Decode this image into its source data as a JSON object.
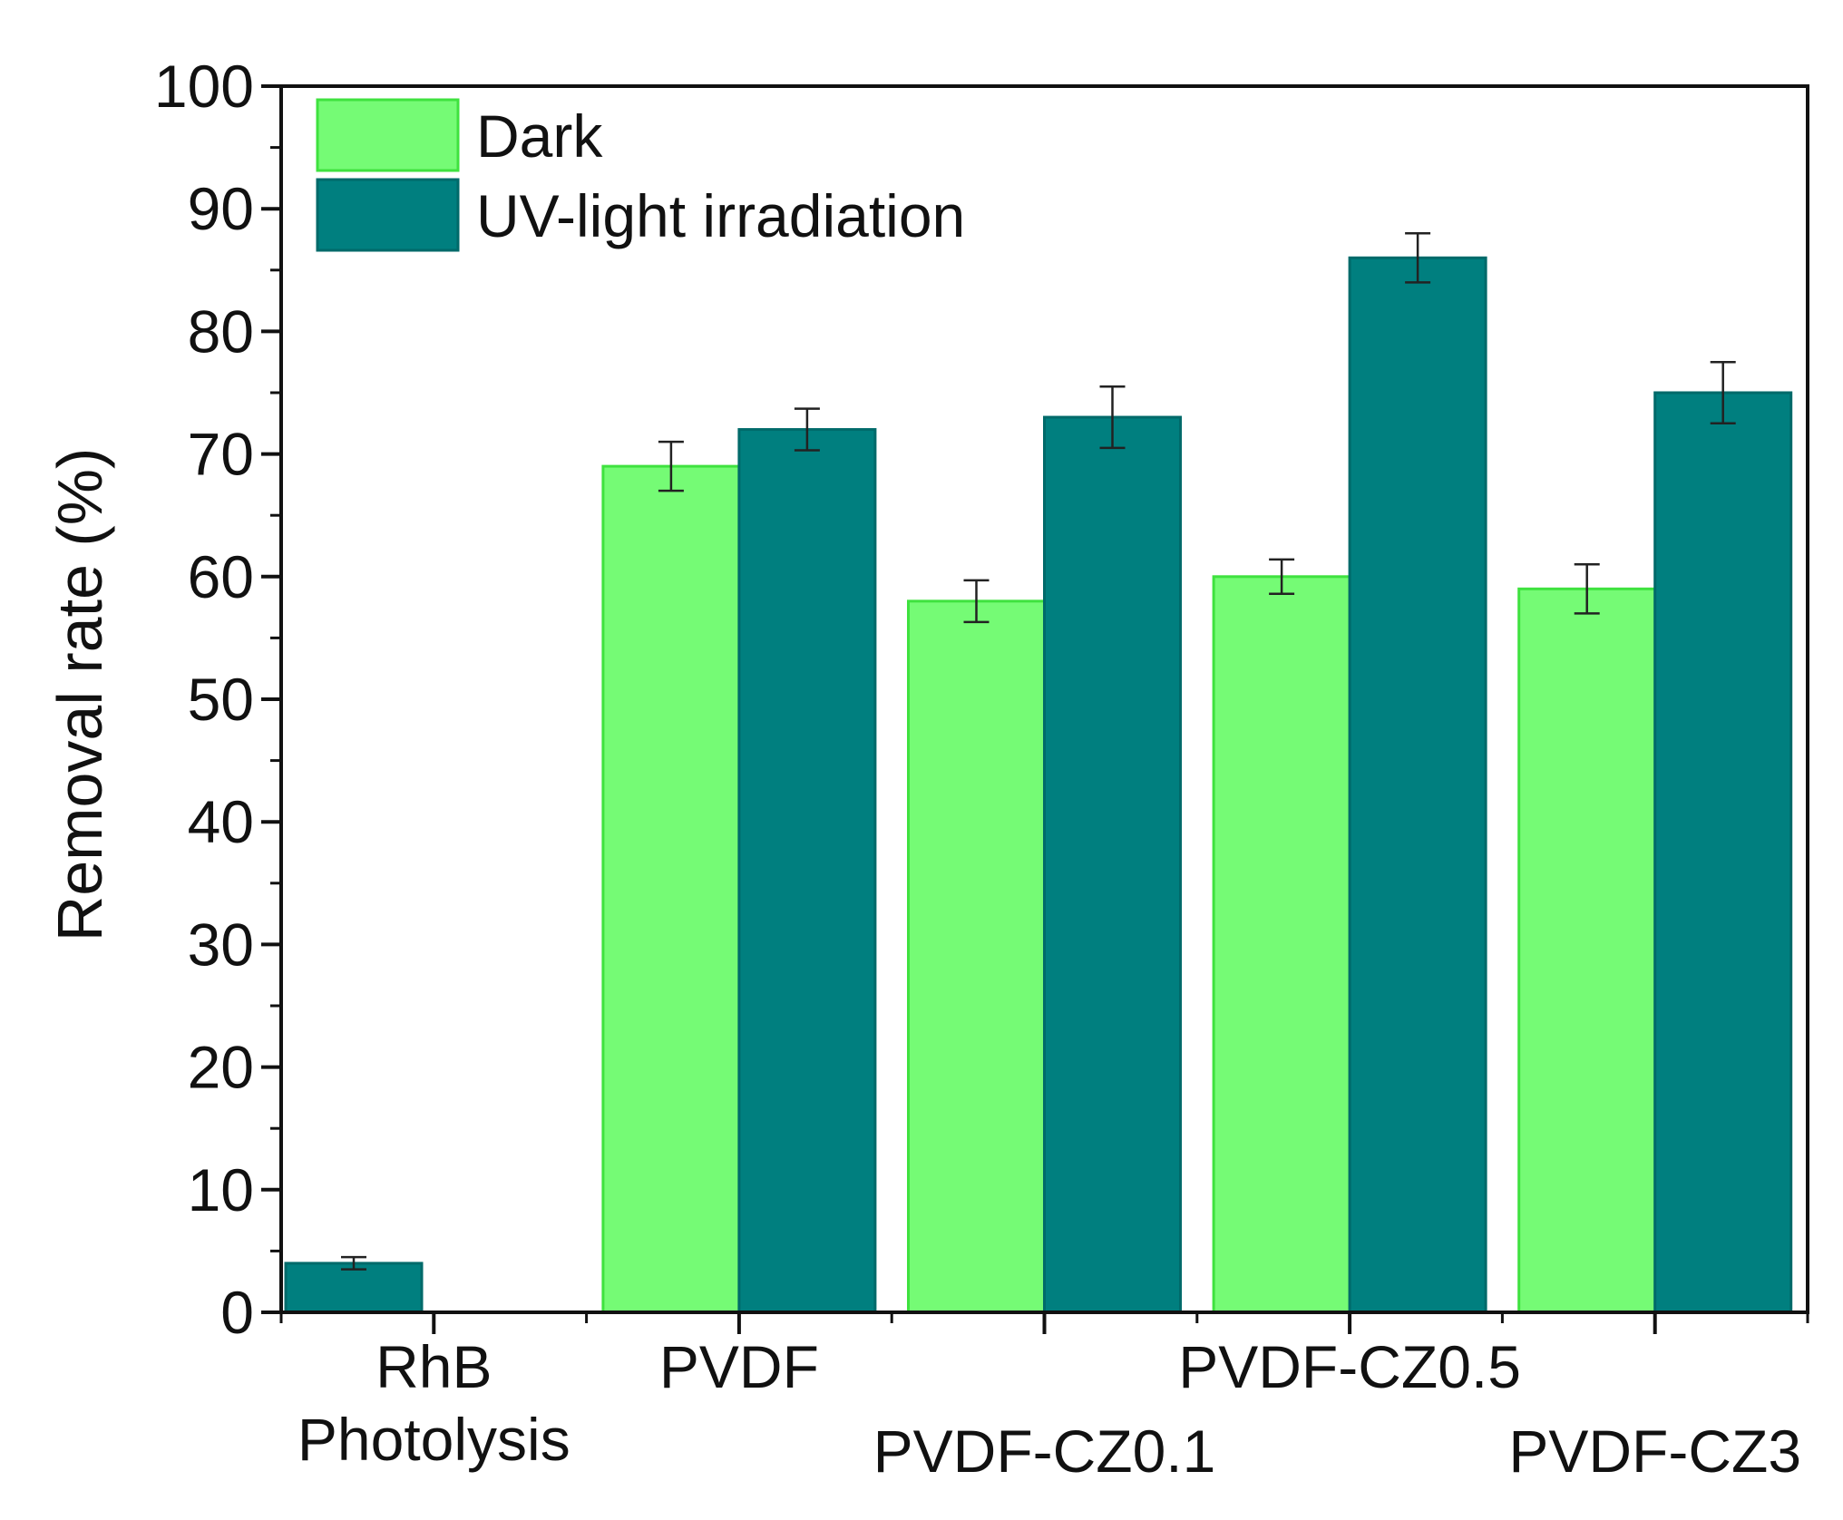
{
  "chart_data": {
    "type": "bar",
    "title": "",
    "xlabel": "",
    "ylabel": "Removal rate (%)",
    "ylim": [
      0,
      100
    ],
    "yticks": [
      0,
      10,
      20,
      30,
      40,
      50,
      60,
      70,
      80,
      90,
      100
    ],
    "categories": [
      {
        "name": "RhB Photolysis",
        "lines": [
          "RhB",
          "Photolysis"
        ],
        "label_row": 1
      },
      {
        "name": "PVDF",
        "lines": [
          "PVDF"
        ],
        "label_row": 1
      },
      {
        "name": "PVDF-CZ0.1",
        "lines": [
          "PVDF-CZ0.1"
        ],
        "label_row": 2
      },
      {
        "name": "PVDF-CZ0.5",
        "lines": [
          "PVDF-CZ0.5"
        ],
        "label_row": 1
      },
      {
        "name": "PVDF-CZ3",
        "lines": [
          "PVDF-CZ3"
        ],
        "label_row": 2
      }
    ],
    "series": [
      {
        "name": "Dark",
        "color": "#75fb75",
        "edge": "#3fe23f",
        "values": [
          null,
          69,
          58,
          60,
          59
        ],
        "errors": [
          null,
          2.0,
          1.7,
          1.4,
          2.0
        ]
      },
      {
        "name": "UV-light irradiation",
        "color": "#007f7f",
        "edge": "#006a6a",
        "values": [
          4,
          72,
          73,
          86,
          75
        ],
        "errors": [
          0.5,
          1.7,
          2.5,
          2.0,
          2.5
        ]
      }
    ],
    "legend": "top-left"
  }
}
